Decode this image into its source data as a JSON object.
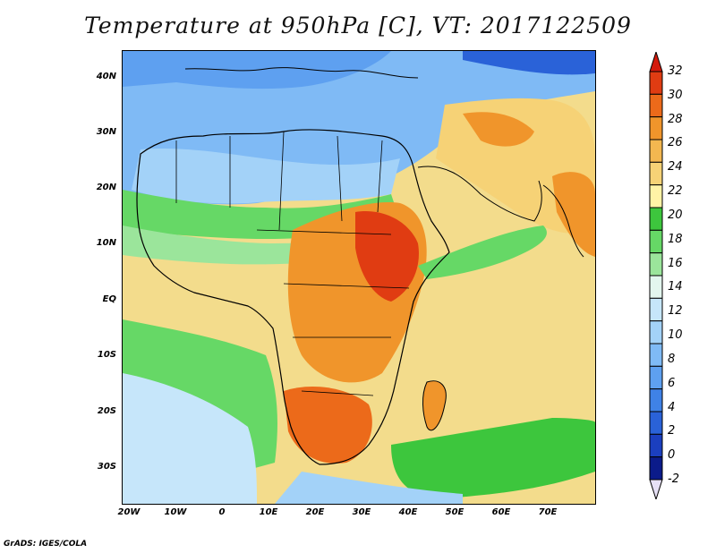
{
  "title": "Temperature at 950hPa [C], VT: 2017122509",
  "footer": "GrADS: IGES/COLA",
  "map": {
    "lon_labels": [
      "20W",
      "10W",
      "0",
      "10E",
      "20E",
      "30E",
      "40E",
      "50E",
      "60E",
      "70E"
    ],
    "lat_labels": [
      "40N",
      "30N",
      "20N",
      "10N",
      "EQ",
      "10S",
      "20S",
      "30S"
    ]
  },
  "colorbar": {
    "levels": [
      "-2",
      "0",
      "2",
      "4",
      "6",
      "8",
      "10",
      "12",
      "14",
      "16",
      "18",
      "20",
      "22",
      "24",
      "26",
      "28",
      "30",
      "32"
    ],
    "colors": [
      "#0b1b8a",
      "#1b3fbf",
      "#2a62d8",
      "#3f82e6",
      "#5ea0f0",
      "#7fbaf5",
      "#a3d2f8",
      "#c6e6fa",
      "#e3f6ee",
      "#9be59b",
      "#66d866",
      "#3dc63d",
      "#fff3a6",
      "#f6d276",
      "#f3b750",
      "#f0952b",
      "#ec6a1a",
      "#e03c12",
      "#d41a0d"
    ],
    "under_color": "#e6e0f5",
    "over_color": "#d41a0d"
  }
}
